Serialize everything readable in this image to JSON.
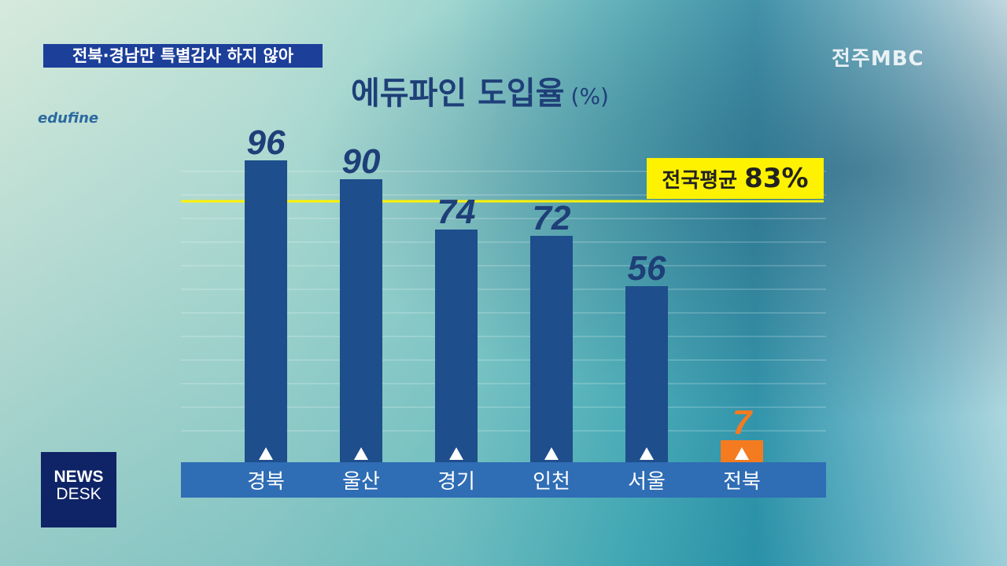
{
  "caption": "전북·경남만 특별감사 하지 않아",
  "channel_logo": "전주MBC",
  "edufine_logo": "edufine",
  "program_badge": {
    "line1": "NEWS",
    "line2": "DESK"
  },
  "chart_data": {
    "type": "bar",
    "title": "에듀파인 도입율",
    "unit": "(%)",
    "categories": [
      "경북",
      "울산",
      "경기",
      "인천",
      "서울",
      "전북"
    ],
    "values": [
      96,
      90,
      74,
      72,
      56,
      7
    ],
    "value_labels": [
      "96",
      "90",
      "74",
      "72",
      "56",
      "7"
    ],
    "ylim": [
      0,
      100
    ],
    "grid": true,
    "reference_line": {
      "label": "전국평균",
      "value": 83,
      "value_label": "83%",
      "color": "#fff200"
    },
    "colors": {
      "bar": "#1e4e8c",
      "highlight": "#f47b20",
      "label_bar": "#2f6db5",
      "value_label": "#1e3f78"
    },
    "highlight_category": "전북"
  }
}
